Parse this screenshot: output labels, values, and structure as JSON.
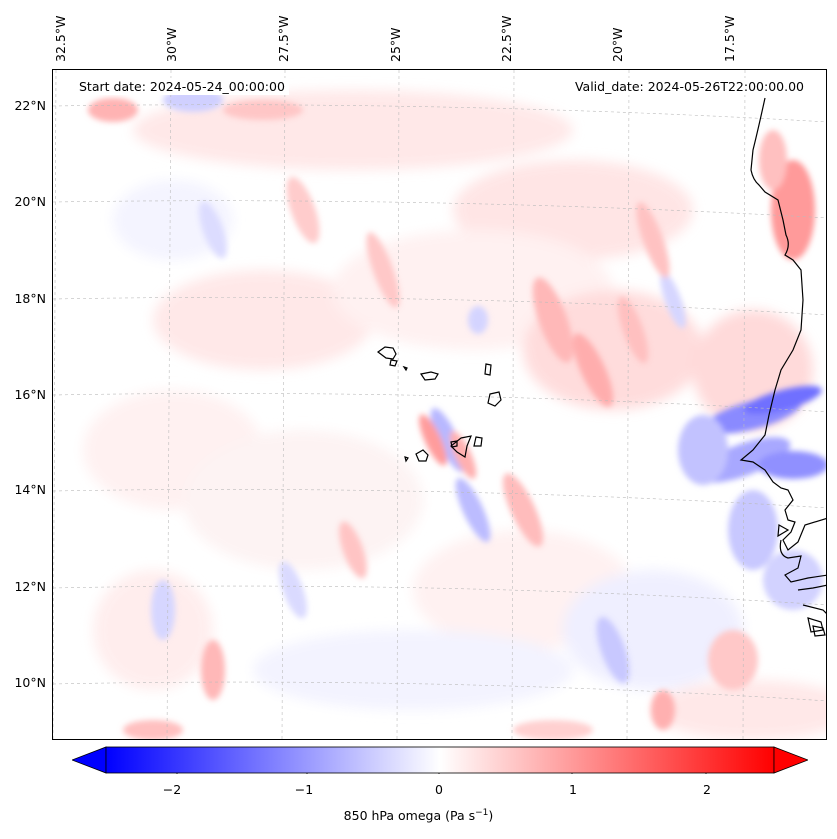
{
  "map": {
    "start_date": "Start date: 2024-05-24_00:00:00",
    "valid_date": "Valid_date: 2024-05-26T22:00:00.00",
    "lon_labels": [
      "32.5°W",
      "30°W",
      "27.5°W",
      "25°W",
      "22.5°W",
      "20°W",
      "17.5°W"
    ],
    "lat_labels": [
      "22°N",
      "20°N",
      "18°N",
      "16°N",
      "14°N",
      "12°N",
      "10°N"
    ],
    "variable": "850 hPa omega",
    "units_prefix": "(Pa s",
    "units_exp": "−1",
    "units_suffix": ")"
  },
  "colorbar": {
    "ticks": [
      "−2",
      "−1",
      "0",
      "1",
      "2"
    ],
    "min_color": "#0000ff",
    "mid_color": "#ffffff",
    "max_color": "#ff0000",
    "range": [
      -2.6,
      2.6
    ],
    "extend": "both"
  },
  "colors": {
    "land_outline": "#000000",
    "gridline": "#bbbbbb"
  }
}
